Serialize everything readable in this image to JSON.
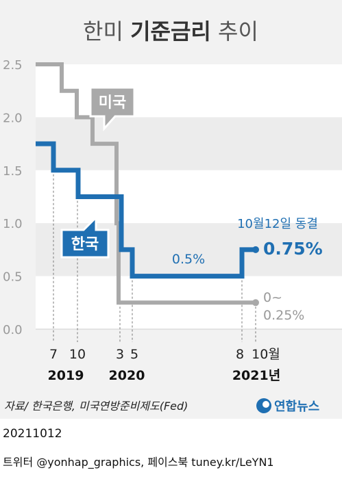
{
  "title": {
    "light_left": "한미 ",
    "bold": "기준금리",
    "light_right": " 추이"
  },
  "source": "자료/ 한국은행, 미국연방준비제도(Fed)",
  "logo_text": "연합뉴스",
  "date": "20211012",
  "social": "트위터 @yonhap_graphics, 페이스북 tuney.kr/LeYN1",
  "colors": {
    "korea": "#1f6fb2",
    "us": "#a9a9a9",
    "annotation_blue": "#1f6fb2",
    "annotation_gray": "#999999"
  },
  "chart_data": {
    "type": "line",
    "step": true,
    "ylim": [
      0,
      2.5
    ],
    "y_ticks": [
      "2.5",
      "2.0",
      "1.5",
      "1.0",
      "0.5",
      "0.0"
    ],
    "x_ticks": [
      "7",
      "10",
      "3",
      "5",
      "8",
      "10월"
    ],
    "x_years": [
      "2019",
      "2020",
      "2021년"
    ],
    "series": [
      {
        "name": "미국",
        "color": "#a9a9a9",
        "points": [
          [
            "2018.12",
            2.5
          ],
          [
            "2019.08",
            2.25
          ],
          [
            "2019.09",
            2.0
          ],
          [
            "2019.10",
            1.75
          ],
          [
            "2020.03",
            1.0
          ],
          [
            "2020.03b",
            0.25
          ],
          [
            "2021.10",
            0.25
          ]
        ]
      },
      {
        "name": "한국",
        "color": "#1f6fb2",
        "points": [
          [
            "2018.12",
            1.75
          ],
          [
            "2019.07",
            1.5
          ],
          [
            "2019.10",
            1.25
          ],
          [
            "2020.03",
            0.75
          ],
          [
            "2020.05",
            0.5
          ],
          [
            "2021.08",
            0.75
          ],
          [
            "2021.10",
            0.75
          ]
        ]
      }
    ],
    "annotations": {
      "korea_mid": "0.5%",
      "freeze": "10월12일 동결",
      "korea_end": "0.75%",
      "us_end_line1": "0~",
      "us_end_line2": "0.25%"
    }
  }
}
